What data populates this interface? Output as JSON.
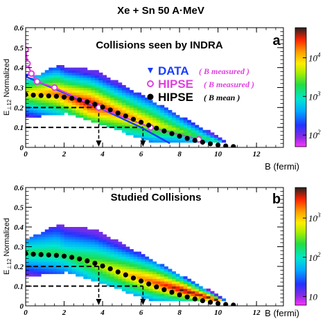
{
  "title": "Xe + Sn 50 A·MeV",
  "colors": {
    "data_blue": "#1a3cff",
    "hipse_measured_magenta": "#e040e0",
    "hipse_mean_black": "#000000"
  },
  "chart_data": [
    {
      "type": "heatmap",
      "panel_letter": "a",
      "panel_title": "Collisions seen by INDRA",
      "xlabel": "B (fermi)",
      "ylabel": "E_{⊥ 12} Normalized",
      "ylabel_main": "E",
      "ylabel_sub": "⊥12",
      "ylabel_rest": " Normalized",
      "xlim": [
        0,
        13.4
      ],
      "ylim": [
        0,
        0.6
      ],
      "x_ticks": [
        "0",
        "2",
        "4",
        "6",
        "8",
        "10",
        "12"
      ],
      "y_ticks": [
        "0",
        "0.1",
        "0.2",
        "0.3",
        "0.4",
        "0.5",
        "0.6"
      ],
      "colorbar": {
        "scale": "log",
        "min": 50,
        "max": 60000,
        "labels": [
          {
            "base": "10",
            "exp": "2",
            "value": 100
          },
          {
            "base": "10",
            "exp": "3",
            "value": 1000
          },
          {
            "base": "10",
            "exp": "4",
            "value": 10000
          }
        ]
      },
      "legend": [
        {
          "marker": "triangle-down",
          "label": "DATA",
          "note": "( B measured )",
          "color": "#1a3cff"
        },
        {
          "marker": "open-circle",
          "label": "HIPSE",
          "note": "( B measured )",
          "color": "#e040e0"
        },
        {
          "marker": "filled-circle",
          "label": "HIPSE",
          "note": "( B mean )",
          "color": "#000000"
        }
      ],
      "series": [
        {
          "marker": "triangle-down",
          "x": [
            0.0,
            3.8,
            6.0,
            7.5
          ],
          "y": [
            0.355,
            0.2,
            0.1,
            0.02
          ]
        },
        {
          "marker": "open-circle",
          "x": [
            0.0,
            0.1,
            0.3,
            0.6,
            1.5,
            3.8,
            6.5,
            9.0
          ],
          "y": [
            0.49,
            0.42,
            0.37,
            0.33,
            0.3,
            0.2,
            0.1,
            0.04
          ]
        },
        {
          "marker": "filled-circle",
          "x": [
            0.0,
            0.4,
            0.8,
            1.2,
            1.6,
            2.0,
            2.4,
            2.8,
            3.2,
            3.6,
            4.0,
            4.4,
            4.8,
            5.2,
            5.6,
            6.0,
            6.4,
            6.8,
            7.2,
            7.6,
            8.0,
            8.4,
            8.8,
            9.2,
            9.6,
            10.0,
            10.4,
            10.8
          ],
          "y": [
            0.265,
            0.262,
            0.26,
            0.258,
            0.256,
            0.252,
            0.246,
            0.238,
            0.228,
            0.216,
            0.202,
            0.188,
            0.172,
            0.157,
            0.141,
            0.126,
            0.111,
            0.096,
            0.082,
            0.069,
            0.056,
            0.045,
            0.035,
            0.026,
            0.018,
            0.012,
            0.007,
            0.004
          ]
        }
      ],
      "guide_lines": [
        {
          "y": 0.2,
          "x": 3.8
        },
        {
          "y": 0.1,
          "x": 6.1
        }
      ]
    },
    {
      "type": "heatmap",
      "panel_letter": "b",
      "panel_title": "Studied Collisions",
      "xlabel": "B (fermi)",
      "ylabel": "E_{⊥ 12} Normalized",
      "ylabel_main": "E",
      "ylabel_sub": "⊥12",
      "ylabel_rest": " Normalized",
      "xlim": [
        0,
        13.4
      ],
      "ylim": [
        0,
        0.6
      ],
      "x_ticks": [
        "0",
        "2",
        "4",
        "6",
        "8",
        "10",
        "12"
      ],
      "y_ticks": [
        "0",
        "0.1",
        "0.2",
        "0.3",
        "0.4",
        "0.5",
        "0.6"
      ],
      "colorbar": {
        "scale": "log",
        "min": 6,
        "max": 6000,
        "labels": [
          {
            "base": "10",
            "exp": "",
            "value": 10
          },
          {
            "base": "10",
            "exp": "2",
            "value": 100
          },
          {
            "base": "10",
            "exp": "3",
            "value": 1000
          }
        ]
      },
      "series": [
        {
          "marker": "filled-circle",
          "x": [
            0.0,
            0.4,
            0.8,
            1.2,
            1.6,
            2.0,
            2.4,
            2.8,
            3.2,
            3.6,
            4.0,
            4.4,
            4.8,
            5.2,
            5.6,
            6.0,
            6.4,
            6.8,
            7.2,
            7.6,
            8.0,
            8.4,
            8.8,
            9.2,
            9.6,
            10.0,
            10.4,
            10.8
          ],
          "y": [
            0.265,
            0.262,
            0.26,
            0.258,
            0.256,
            0.252,
            0.246,
            0.238,
            0.228,
            0.216,
            0.202,
            0.188,
            0.172,
            0.157,
            0.141,
            0.126,
            0.111,
            0.096,
            0.082,
            0.069,
            0.056,
            0.045,
            0.035,
            0.026,
            0.018,
            0.012,
            0.007,
            0.004
          ]
        }
      ],
      "guide_lines": [
        {
          "y": 0.2,
          "x": 3.8
        },
        {
          "y": 0.1,
          "x": 6.1
        }
      ]
    }
  ]
}
